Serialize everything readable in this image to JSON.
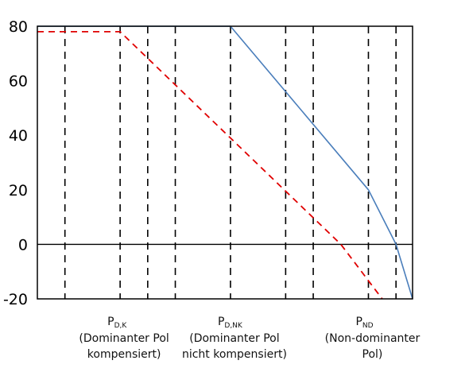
{
  "chart_data": {
    "type": "line",
    "title": "",
    "xlabel": "",
    "ylabel": "",
    "ylim": [
      -20,
      80
    ],
    "yticks": [
      80,
      60,
      40,
      20,
      0,
      -20
    ],
    "xlim": [
      0,
      13.6
    ],
    "grid": {
      "vertical_dashed_x": [
        1,
        3,
        4,
        5,
        7,
        9,
        10,
        12,
        13
      ],
      "horizontal_zero_line": true
    },
    "series": [
      {
        "color": "#4a7ebb",
        "dash": "solid",
        "x": [
          0,
          7,
          12,
          13,
          13.6
        ],
        "y": [
          80,
          80,
          20,
          0,
          -20
        ]
      },
      {
        "color": "#e00000",
        "dash": "dashed",
        "x": [
          0,
          3,
          11,
          12.5
        ],
        "y": [
          78,
          78,
          0,
          -20
        ]
      }
    ],
    "pole_labels": [
      {
        "x": 3,
        "main": "P",
        "sub": "D,K",
        "line1": "(Dominanter Pol",
        "line2": "kompensiert)"
      },
      {
        "x": 7,
        "main": "P",
        "sub": "D,NK",
        "line1": "(Dominanter Pol",
        "line2": "nicht kompensiert)"
      },
      {
        "x": 12,
        "main": "P",
        "sub": "ND",
        "line1": "(Non-dominanter",
        "line2": "Pol)"
      }
    ]
  }
}
